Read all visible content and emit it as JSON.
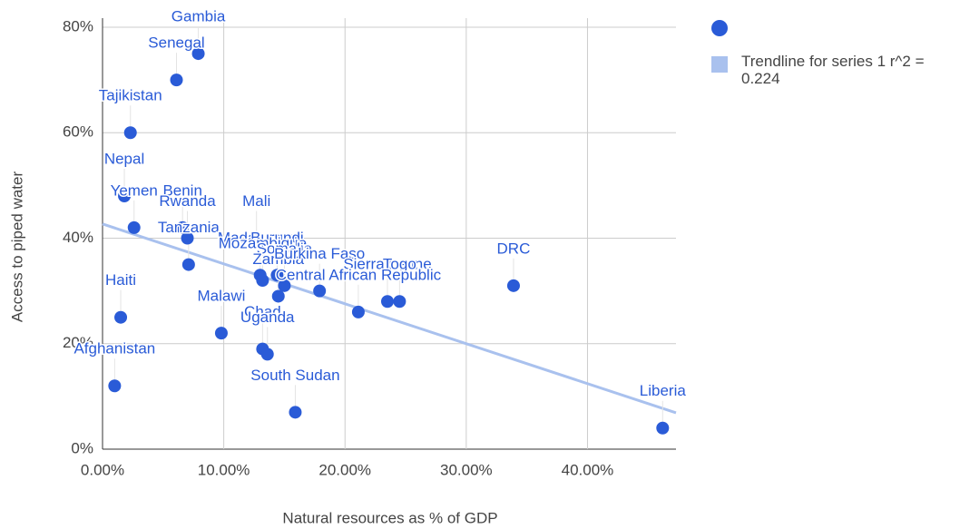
{
  "chart_data": {
    "type": "scatter",
    "x_label": "Natural resources as % of GDP",
    "y_label": "Access to piped water",
    "xlim": [
      0,
      47.3
    ],
    "ylim": [
      0,
      80
    ],
    "xticks": [
      {
        "value": 0,
        "label": "0.00%"
      },
      {
        "value": 10,
        "label": "10.00%"
      },
      {
        "value": 20,
        "label": "20.00%"
      },
      {
        "value": 30,
        "label": "30.00%"
      },
      {
        "value": 40,
        "label": "40.00%"
      }
    ],
    "yticks": [
      {
        "value": 0,
        "label": "0%"
      },
      {
        "value": 20,
        "label": "20%"
      },
      {
        "value": 40,
        "label": "40%"
      },
      {
        "value": 60,
        "label": "60%"
      },
      {
        "value": 80,
        "label": "80%"
      }
    ],
    "grid": true,
    "series": [
      {
        "color": "#2a5bd7",
        "labels": [
          "Gambia",
          "Senegal",
          "Tajikistan",
          "Nepal",
          "Yemen",
          "Benin",
          "Rwanda",
          "Tanzania",
          "Mali",
          "Madagascar",
          "Burundi",
          "Mozambique",
          "Somalia",
          "Zambia",
          "Burkina Faso",
          "Sierra Leone",
          "Togo",
          "Central African Republic",
          "Malawi",
          "Chad",
          "Uganda",
          "DRC",
          "Liberia",
          "Haiti",
          "Afghanistan",
          "South Sudan"
        ],
        "x": [
          7.9,
          6.1,
          2.3,
          1.8,
          2.6,
          6.6,
          7.0,
          7.1,
          12.7,
          13.0,
          14.4,
          13.2,
          15.0,
          14.5,
          17.9,
          23.5,
          24.5,
          21.1,
          9.8,
          13.2,
          13.6,
          33.9,
          46.2,
          1.5,
          1.0,
          15.9
        ],
        "values": [
          75,
          70,
          60,
          48,
          42,
          42,
          40,
          35,
          40,
          33,
          33,
          32,
          31,
          29,
          30,
          28,
          28,
          26,
          22,
          19,
          18,
          31,
          4,
          25,
          12,
          7
        ]
      }
    ],
    "trendline": {
      "name": "Trendline for series 1 r^2 = 0.224",
      "color": "#a9c1ee",
      "x": [
        0,
        47.3
      ],
      "values": [
        42.7,
        6.9
      ]
    }
  }
}
